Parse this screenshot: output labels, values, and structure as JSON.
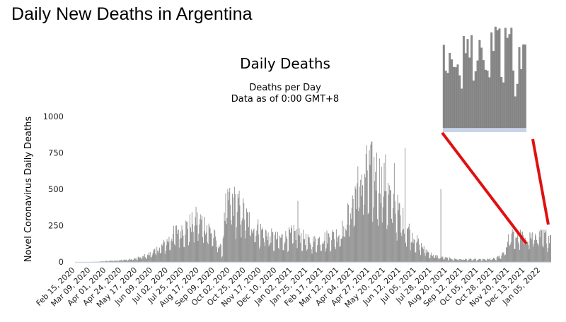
{
  "page": {
    "title": "Daily New Deaths in Argentina"
  },
  "colors": {
    "bar": "#8a8a8a",
    "bar_edge": "#6a6a6a",
    "annotation": "#e01010",
    "axis": "#cfd8e6",
    "inset_band": "#c9d4e8"
  },
  "chart_data": {
    "type": "bar",
    "title": "Daily Deaths",
    "subtitle": "Deaths per Day",
    "note": "Data as of 0:00 GMT+8",
    "xlabel": "",
    "ylabel": "Novel Coronavirus Daily Deaths",
    "ylim": [
      0,
      1000
    ],
    "yticks": [
      0,
      250,
      500,
      750,
      1000
    ],
    "x_tick_labels": [
      "Feb 15, 2020",
      "Mar 09, 2020",
      "Apr 01, 2020",
      "Apr 24, 2020",
      "May 17, 2020",
      "Jun 09, 2020",
      "Jul 02, 2020",
      "Jul 25, 2020",
      "Aug 17, 2020",
      "Sep 09, 2020",
      "Oct 02, 2020",
      "Oct 25, 2020",
      "Nov 17, 2020",
      "Dec 10, 2020",
      "Jan 02, 2021",
      "Jan 25, 2021",
      "Feb 17, 2021",
      "Mar 12, 2021",
      "Apr 04, 2021",
      "Apr 27, 2021",
      "May 20, 2021",
      "Jun 12, 2021",
      "Jul 05, 2021",
      "Jul 28, 2021",
      "Aug 20, 2021",
      "Sep 12, 2021",
      "Oct 05, 2021",
      "Oct 28, 2021",
      "Nov 20, 2021",
      "Dec 13, 2021",
      "Jan 05, 2022"
    ],
    "x_start": "Feb 15, 2020",
    "x_end": "Jan 20, 2022",
    "days_between_ticks": 23,
    "series": [
      {
        "name": "Daily Deaths",
        "approx_weekly_values": [
          0,
          0,
          0,
          0,
          1,
          3,
          5,
          8,
          10,
          12,
          14,
          16,
          20,
          25,
          35,
          45,
          60,
          80,
          100,
          130,
          160,
          200,
          230,
          240,
          250,
          290,
          300,
          280,
          250,
          200,
          150,
          80,
          420,
          450,
          400,
          380,
          330,
          280,
          250,
          230,
          210,
          190,
          170,
          160,
          170,
          180,
          200,
          190,
          180,
          150,
          140,
          150,
          160,
          170,
          180,
          190,
          200,
          250,
          350,
          450,
          550,
          600,
          640,
          650,
          620,
          560,
          500,
          430,
          380,
          320,
          260,
          210,
          160,
          120,
          90,
          60,
          45,
          35,
          30,
          25,
          22,
          20,
          20,
          18,
          18,
          17,
          17,
          18,
          20,
          25,
          40,
          80,
          180
        ],
        "highlights": [
          {
            "date": "Jun 01, 2020",
            "value": 50
          },
          {
            "date": "Sep 20, 2020",
            "value": 40
          },
          {
            "date": "Oct 01, 2020",
            "value": 510
          },
          {
            "date": "Jan 10, 2021",
            "value": 420
          },
          {
            "date": "May 20, 2021",
            "value": 740
          },
          {
            "date": "Jun 02, 2021",
            "value": 680
          },
          {
            "date": "Jun 18, 2021",
            "value": 785
          },
          {
            "date": "Aug 10, 2021",
            "value": 500
          },
          {
            "date": "Jan 20, 2022",
            "value": 185
          }
        ]
      }
    ],
    "inset": {
      "description": "zoomed view of the most recent period"
    }
  }
}
